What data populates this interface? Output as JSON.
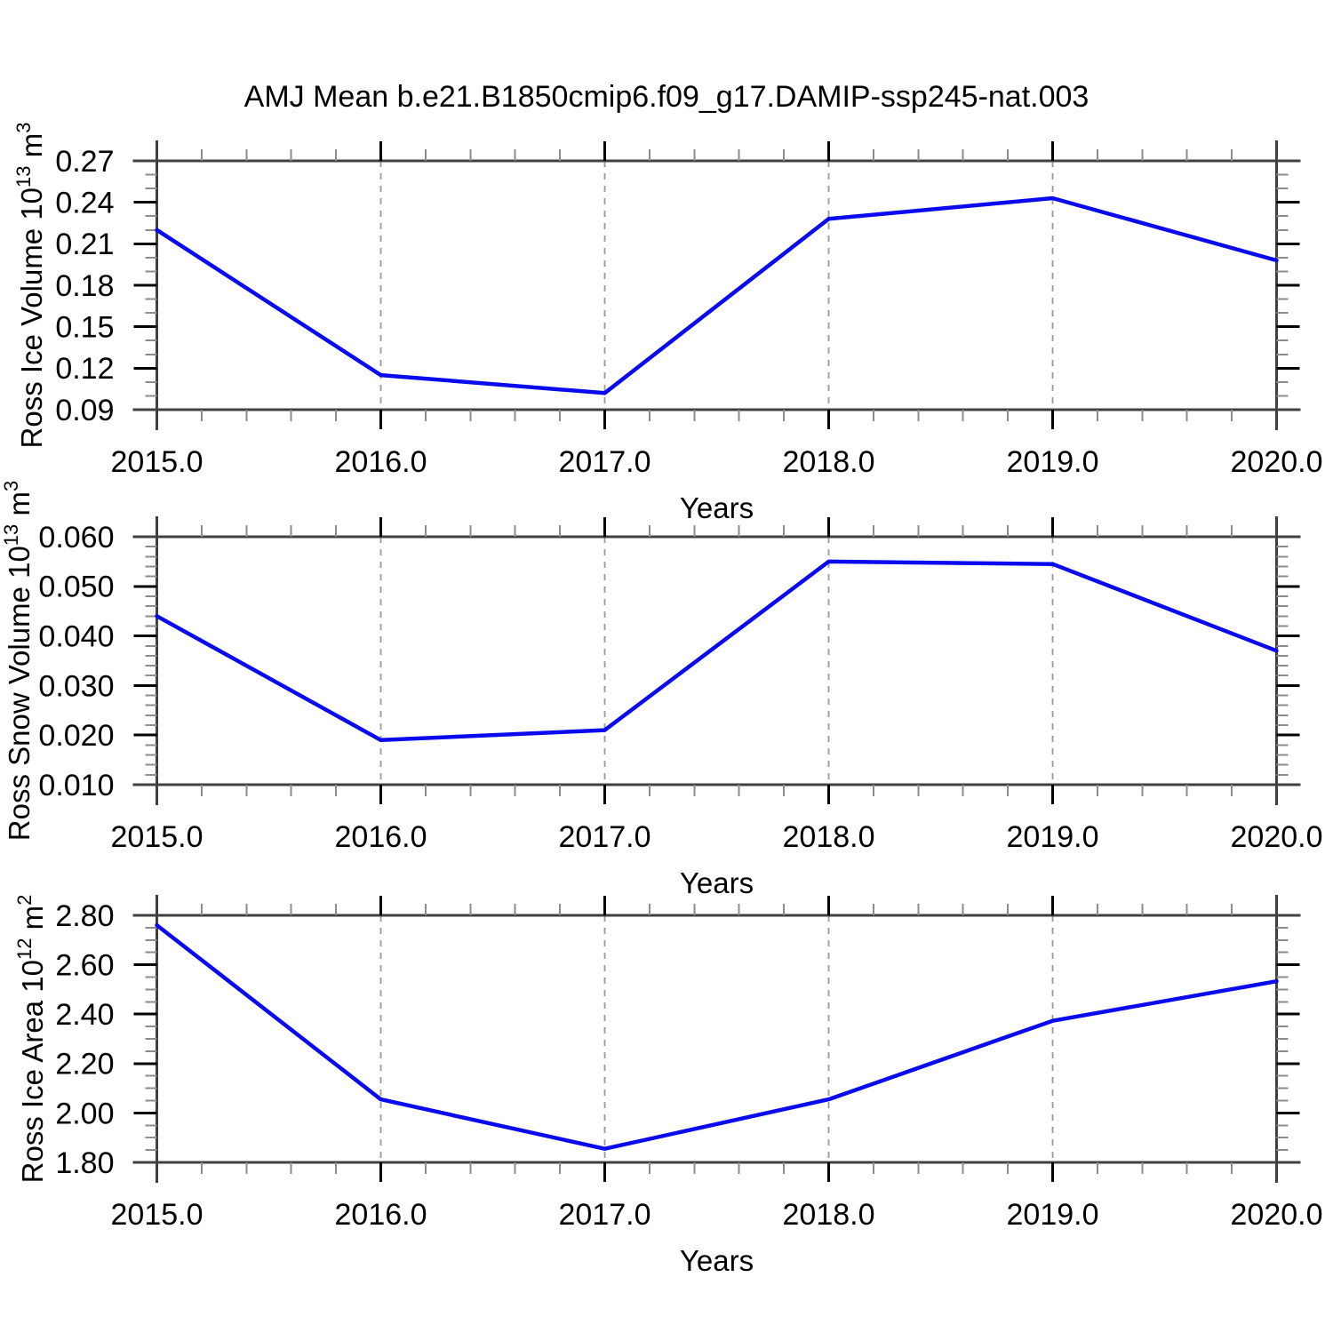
{
  "title": "AMJ Mean b.e21.B1850cmip6.f09_g17.DAMIP-ssp245-nat.003",
  "colors": {
    "line": "#0a0aee",
    "frame": "#404040",
    "major_tick": "#000000",
    "minor_tick": "#8c8c8c",
    "gridline": "#9a9a9a",
    "text": "#000000",
    "background": "#ffffff"
  },
  "x_axis": {
    "label": "Years",
    "xlim": [
      2015,
      2020
    ],
    "tick_values": [
      2015,
      2016,
      2017,
      2018,
      2019,
      2020
    ],
    "tick_labels": [
      "2015.0",
      "2016.0",
      "2017.0",
      "2018.0",
      "2019.0",
      "2020.0"
    ],
    "minor_step": 0.2,
    "gridlines_at": [
      2016,
      2017,
      2018,
      2019
    ]
  },
  "chart_data": [
    {
      "type": "line",
      "name": "ross-ice-volume",
      "ylabel_parts": [
        {
          "t": "Ross Ice Volume 10"
        },
        {
          "t": "13",
          "sup": true
        },
        {
          "t": " m"
        },
        {
          "t": "3",
          "sup": true
        }
      ],
      "x": [
        2015,
        2016,
        2017,
        2018,
        2019,
        2020
      ],
      "values": [
        0.22,
        0.115,
        0.102,
        0.228,
        0.243,
        0.198
      ],
      "ylim": [
        0.09,
        0.27
      ],
      "yticks": [
        {
          "v": 0.27,
          "label": "0.27"
        },
        {
          "v": 0.24,
          "label": "0.24"
        },
        {
          "v": 0.21,
          "label": "0.21"
        },
        {
          "v": 0.18,
          "label": "0.18"
        },
        {
          "v": 0.15,
          "label": "0.15"
        },
        {
          "v": 0.12,
          "label": "0.12"
        },
        {
          "v": 0.09,
          "label": "0.09"
        }
      ],
      "yminor_step": 0.01,
      "xlabel": "Years",
      "grid": "vertical-dashed",
      "legend": "none"
    },
    {
      "type": "line",
      "name": "ross-snow-volume",
      "ylabel_parts": [
        {
          "t": "Ross Snow Volume 10"
        },
        {
          "t": "13",
          "sup": true
        },
        {
          "t": " m"
        },
        {
          "t": "3",
          "sup": true
        }
      ],
      "x": [
        2015,
        2016,
        2017,
        2018,
        2019,
        2020
      ],
      "values": [
        0.044,
        0.019,
        0.021,
        0.055,
        0.0545,
        0.037
      ],
      "ylim": [
        0.01,
        0.06
      ],
      "yticks": [
        {
          "v": 0.06,
          "label": "0.060"
        },
        {
          "v": 0.05,
          "label": "0.050"
        },
        {
          "v": 0.04,
          "label": "0.040"
        },
        {
          "v": 0.03,
          "label": "0.030"
        },
        {
          "v": 0.02,
          "label": "0.020"
        },
        {
          "v": 0.01,
          "label": "0.010"
        }
      ],
      "yminor_step": 0.002,
      "xlabel": "Years",
      "grid": "vertical-dashed",
      "legend": "none"
    },
    {
      "type": "line",
      "name": "ross-ice-area",
      "ylabel_parts": [
        {
          "t": "Ross Ice Area 10"
        },
        {
          "t": "12",
          "sup": true
        },
        {
          "t": " m"
        },
        {
          "t": "2",
          "sup": true
        }
      ],
      "x": [
        2015,
        2016,
        2017,
        2018,
        2019,
        2020
      ],
      "values": [
        2.76,
        2.055,
        1.855,
        2.055,
        2.373,
        2.533
      ],
      "ylim": [
        1.8,
        2.8
      ],
      "yticks": [
        {
          "v": 2.8,
          "label": "2.80"
        },
        {
          "v": 2.6,
          "label": "2.60"
        },
        {
          "v": 2.4,
          "label": "2.40"
        },
        {
          "v": 2.2,
          "label": "2.20"
        },
        {
          "v": 2.0,
          "label": "2.00"
        },
        {
          "v": 1.8,
          "label": "1.80"
        }
      ],
      "yminor_step": 0.05,
      "xlabel": "Years",
      "grid": "vertical-dashed",
      "legend": "none"
    }
  ]
}
